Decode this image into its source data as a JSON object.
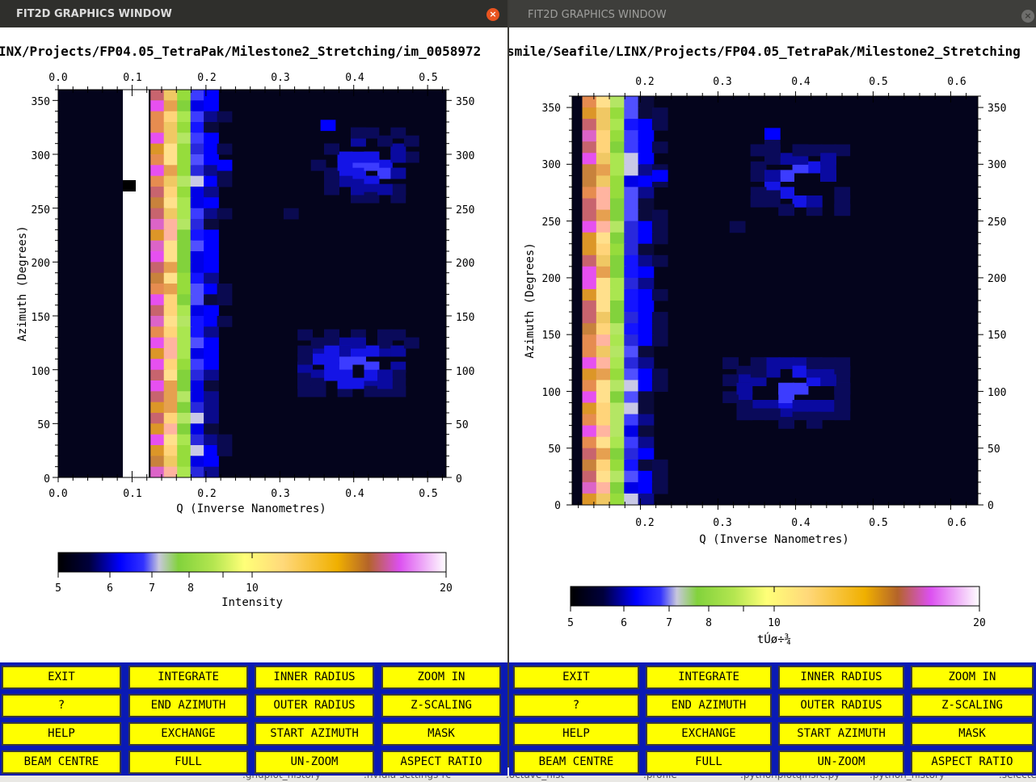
{
  "left_window": {
    "title": "FIT2D GRAPHICS WINDOW",
    "file_path": "INX/Projects/FP04.05_TetraPak/Milestone2_Stretching/im_0058972",
    "x_axis_label": "Q (Inverse Nanometres)",
    "y_axis_label": "Azimuth (Degrees)",
    "colorbar_label": "Intensity"
  },
  "right_window": {
    "title": "FIT2D GRAPHICS WINDOW",
    "file_path": "smile/Seafile/LINX/Projects/FP04.05_TetraPak/Milestone2_Stretching",
    "x_axis_label": "Q (Inverse Nanometres)",
    "y_axis_label": "Azimuth (Degrees)",
    "colorbar_label": "tÚø÷¾"
  },
  "buttons": [
    [
      "EXIT",
      "INTEGRATE",
      "INNER RADIUS",
      "ZOOM IN"
    ],
    [
      "?",
      "END AZIMUTH",
      "OUTER RADIUS",
      "Z-SCALING"
    ],
    [
      "HELP",
      "EXCHANGE",
      "START AZIMUTH",
      "MASK"
    ],
    [
      "BEAM CENTRE",
      "FULL",
      "UN-ZOOM",
      "ASPECT RATIO"
    ]
  ],
  "taskbar_files": [
    ".gnuplot_history",
    ".nvidia-settings-rc",
    ".octave_hist",
    ".profile",
    ".pythonplotqinsrc.py",
    ".python_history",
    ".selecte"
  ],
  "plot_left": {
    "q_ticks_top": [
      "0.0",
      "0.1",
      "0.2",
      "0.3",
      "0.4",
      "0.5"
    ],
    "q_ticks_bottom": [
      "0.0",
      "0.1",
      "0.2",
      "0.3",
      "0.4",
      "0.5"
    ],
    "az_ticks": [
      "0",
      "50",
      "100",
      "150",
      "200",
      "250",
      "300",
      "350"
    ],
    "colorbar_ticks": [
      "5",
      "6",
      "7",
      "8",
      "10",
      "20"
    ],
    "q_range": [
      0.0,
      0.525
    ],
    "az_range": [
      0,
      360
    ]
  },
  "plot_right": {
    "q_ticks_top": [
      "0.2",
      "0.3",
      "0.4",
      "0.5",
      "0.6"
    ],
    "q_ticks_bottom": [
      "0.2",
      "0.3",
      "0.4",
      "0.5",
      "0.6"
    ],
    "az_ticks": [
      "0",
      "50",
      "100",
      "150",
      "200",
      "250",
      "300",
      "350"
    ],
    "colorbar_ticks": [
      "5",
      "6",
      "7",
      "8",
      "10",
      "20"
    ],
    "q_range": [
      0.112,
      0.635
    ],
    "az_range": [
      0,
      360
    ]
  },
  "colors": {
    "button_bg": "#ffff00",
    "panel_bg": "#0a1ab4",
    "close_button": "#e95420",
    "plot_bg": "#04041c"
  }
}
